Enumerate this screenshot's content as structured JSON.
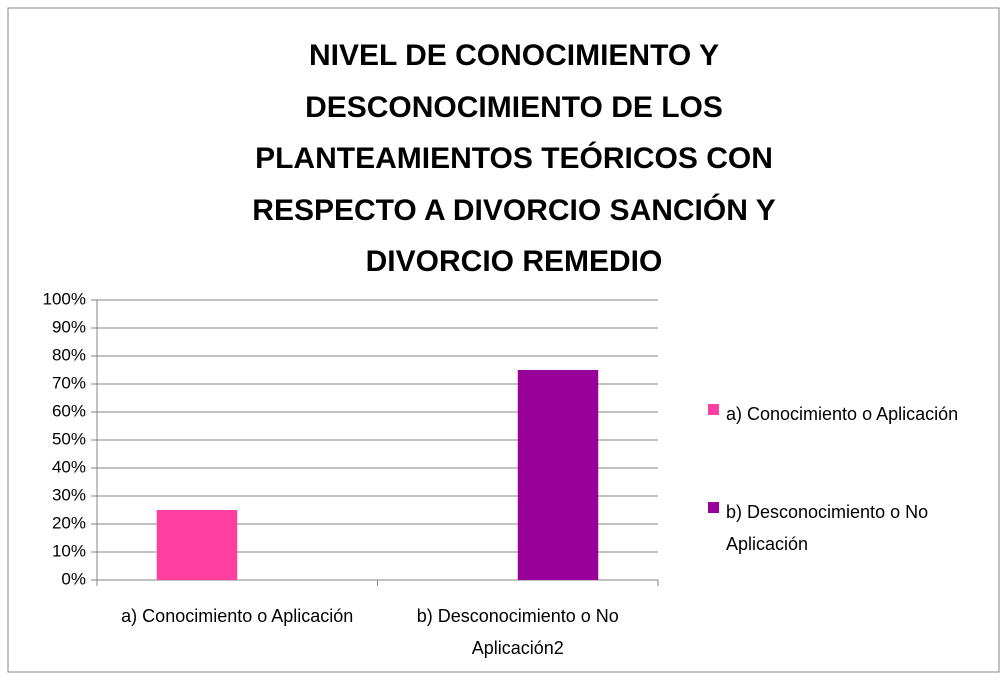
{
  "chart_data": {
    "type": "bar",
    "title": "NIVEL DE CONOCIMIENTO Y DESCONOCIMIENTO DE LOS PLANTEAMIENTOS TEÓRICOS CON RESPECTO A DIVORCIO SANCIÓN Y DIVORCIO REMEDIO",
    "categories": [
      "a) Conocimiento o Aplicación",
      "b) Desconocimiento o No Aplicación2"
    ],
    "series": [
      {
        "name": "a) Conocimiento o Aplicación",
        "color": "#ff3f9f",
        "values": [
          25,
          null
        ]
      },
      {
        "name": "b) Desconocimiento o No Aplicación",
        "color": "#990099",
        "values": [
          null,
          75
        ]
      }
    ],
    "ylim": [
      0,
      100
    ],
    "yticks": [
      {
        "value": 0,
        "label": "0%"
      },
      {
        "value": 10,
        "label": "10%"
      },
      {
        "value": 20,
        "label": "20%"
      },
      {
        "value": 30,
        "label": "30%"
      },
      {
        "value": 40,
        "label": "40%"
      },
      {
        "value": 50,
        "label": "50%"
      },
      {
        "value": 60,
        "label": "60%"
      },
      {
        "value": 70,
        "label": "70%"
      },
      {
        "value": 80,
        "label": "80%"
      },
      {
        "value": 90,
        "label": "90%"
      },
      {
        "value": 100,
        "label": "100%"
      }
    ],
    "grid": true,
    "legend": "right"
  }
}
